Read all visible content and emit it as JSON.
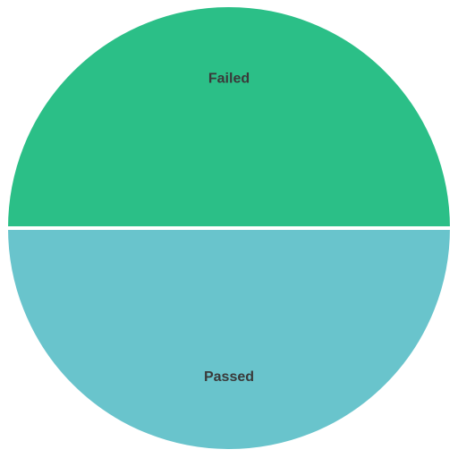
{
  "chart_data": {
    "type": "pie",
    "labels": [
      "Failed",
      "Passed"
    ],
    "values": [
      50,
      50
    ],
    "colors": [
      "#2bbf87",
      "#69c4cc"
    ],
    "start": "left",
    "direction": "clockwise",
    "separator_color": "#ffffff",
    "legend": "none"
  }
}
